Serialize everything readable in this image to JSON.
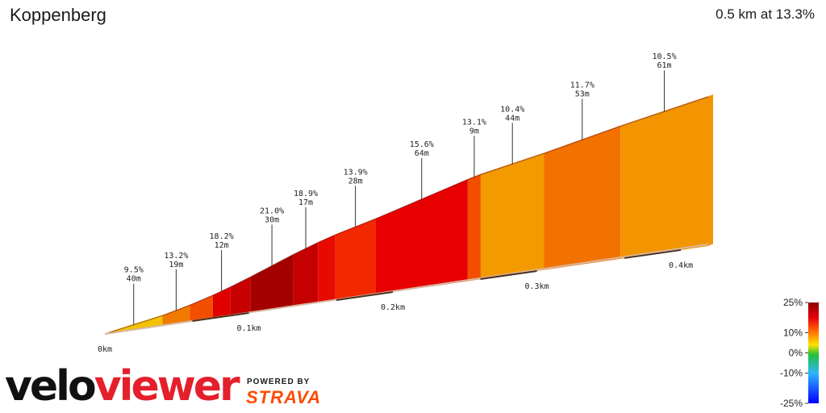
{
  "header": {
    "title": "Koppenberg",
    "summary": "0.5 km at 13.3%"
  },
  "colors": {
    "gradient_scale": [
      "#0000ff",
      "#2fb6ff",
      "#1fbf3a",
      "#ffe200",
      "#ff7a00",
      "#e8000b",
      "#8b0000"
    ]
  },
  "branding": {
    "logo_velo": "velo",
    "logo_viewer": "viewer",
    "powered_by": "POWERED BY",
    "strava": "STRAVA"
  },
  "chart_data": {
    "type": "area",
    "segments": [
      {
        "gradient": "9.5%",
        "length": "40m",
        "start_m": 0,
        "end_m": 40,
        "color": "#f2c400"
      },
      {
        "gradient": "13.2%",
        "length": "19m",
        "start_m": 40,
        "end_m": 59,
        "color": "#f17a00"
      },
      {
        "gradient": "",
        "length": "",
        "start_m": 59,
        "end_m": 75,
        "color": "#f24e00"
      },
      {
        "gradient": "18.2%",
        "length": "12m",
        "start_m": 75,
        "end_m": 87,
        "color": "#e10000"
      },
      {
        "gradient": "",
        "length": "",
        "start_m": 87,
        "end_m": 101,
        "color": "#c80000"
      },
      {
        "gradient": "21.0%",
        "length": "30m",
        "start_m": 101,
        "end_m": 131,
        "color": "#a50000"
      },
      {
        "gradient": "18.9%",
        "length": "17m",
        "start_m": 131,
        "end_m": 148,
        "color": "#c40000"
      },
      {
        "gradient": "",
        "length": "",
        "start_m": 148,
        "end_m": 160,
        "color": "#e60a00"
      },
      {
        "gradient": "13.9%",
        "length": "28m",
        "start_m": 160,
        "end_m": 188,
        "color": "#f22800"
      },
      {
        "gradient": "15.6%",
        "length": "64m",
        "start_m": 188,
        "end_m": 252,
        "color": "#e60000"
      },
      {
        "gradient": "13.1%",
        "length": "9m",
        "start_m": 252,
        "end_m": 261,
        "color": "#f24e00"
      },
      {
        "gradient": "10.4%",
        "length": "44m",
        "start_m": 261,
        "end_m": 305,
        "color": "#f29a00"
      },
      {
        "gradient": "11.7%",
        "length": "53m",
        "start_m": 305,
        "end_m": 358,
        "color": "#f27200"
      },
      {
        "gradient": "10.5%",
        "length": "61m",
        "start_m": 358,
        "end_m": 419,
        "color": "#f29500"
      }
    ],
    "distance_ticks": [
      "0km",
      "0.1km",
      "0.2km",
      "0.3km",
      "0.4km"
    ],
    "distance_tick_values_km": [
      0,
      0.1,
      0.2,
      0.3,
      0.4
    ],
    "legend": {
      "labels": [
        "25%",
        "10%",
        "0%",
        "-10%",
        "-25%"
      ],
      "values": [
        25,
        10,
        0,
        -10,
        -25
      ]
    }
  }
}
